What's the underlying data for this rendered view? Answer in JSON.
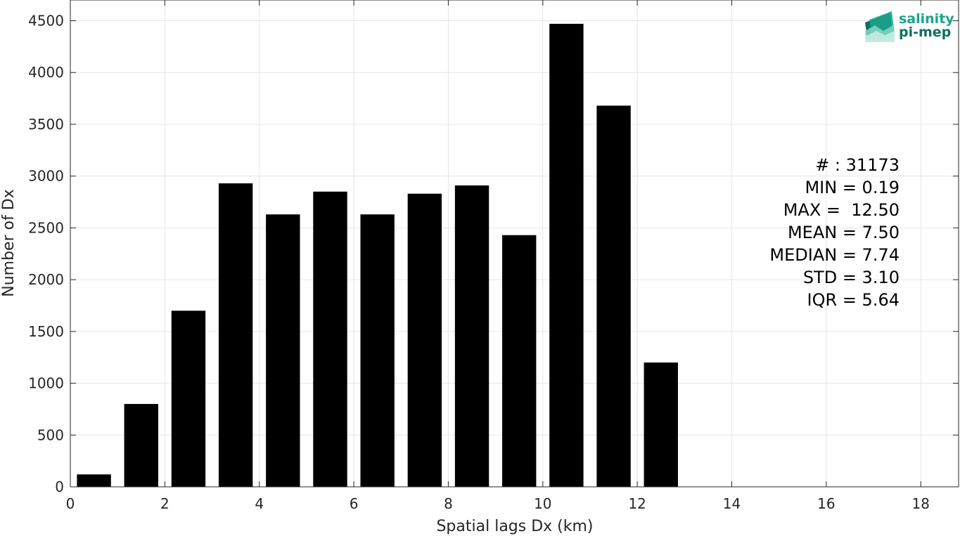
{
  "chart_data": {
    "type": "bar",
    "xlabel": "Spatial lags Dx (km)",
    "ylabel": "Number of Dx",
    "xlim": [
      0,
      18.8
    ],
    "ylim": [
      0,
      4700
    ],
    "xticks": [
      0,
      2,
      4,
      6,
      8,
      10,
      12,
      14,
      16,
      18
    ],
    "yticks": [
      0,
      500,
      1000,
      1500,
      2000,
      2500,
      3000,
      3500,
      4000,
      4500
    ],
    "grid": true,
    "bar_color": "#000000",
    "bar_width": 0.72,
    "x": [
      0.5,
      1.5,
      2.5,
      3.5,
      4.5,
      5.5,
      6.5,
      7.5,
      8.5,
      9.5,
      10.5,
      11.5,
      12.5
    ],
    "values": [
      120,
      800,
      1700,
      2930,
      2630,
      2850,
      2630,
      2830,
      2910,
      2430,
      4470,
      3680,
      1200
    ]
  },
  "stats": {
    "lines": [
      "# : 31173",
      "MIN = 0.19",
      "MAX =  12.50",
      "MEAN = 7.50",
      "MEDIAN = 7.74",
      "STD = 3.10",
      "IQR = 5.64"
    ]
  },
  "logo": {
    "line1": "salinity",
    "line2": "pi-mep",
    "color_primary": "#1aa68c",
    "color_secondary": "#0f6e63"
  }
}
